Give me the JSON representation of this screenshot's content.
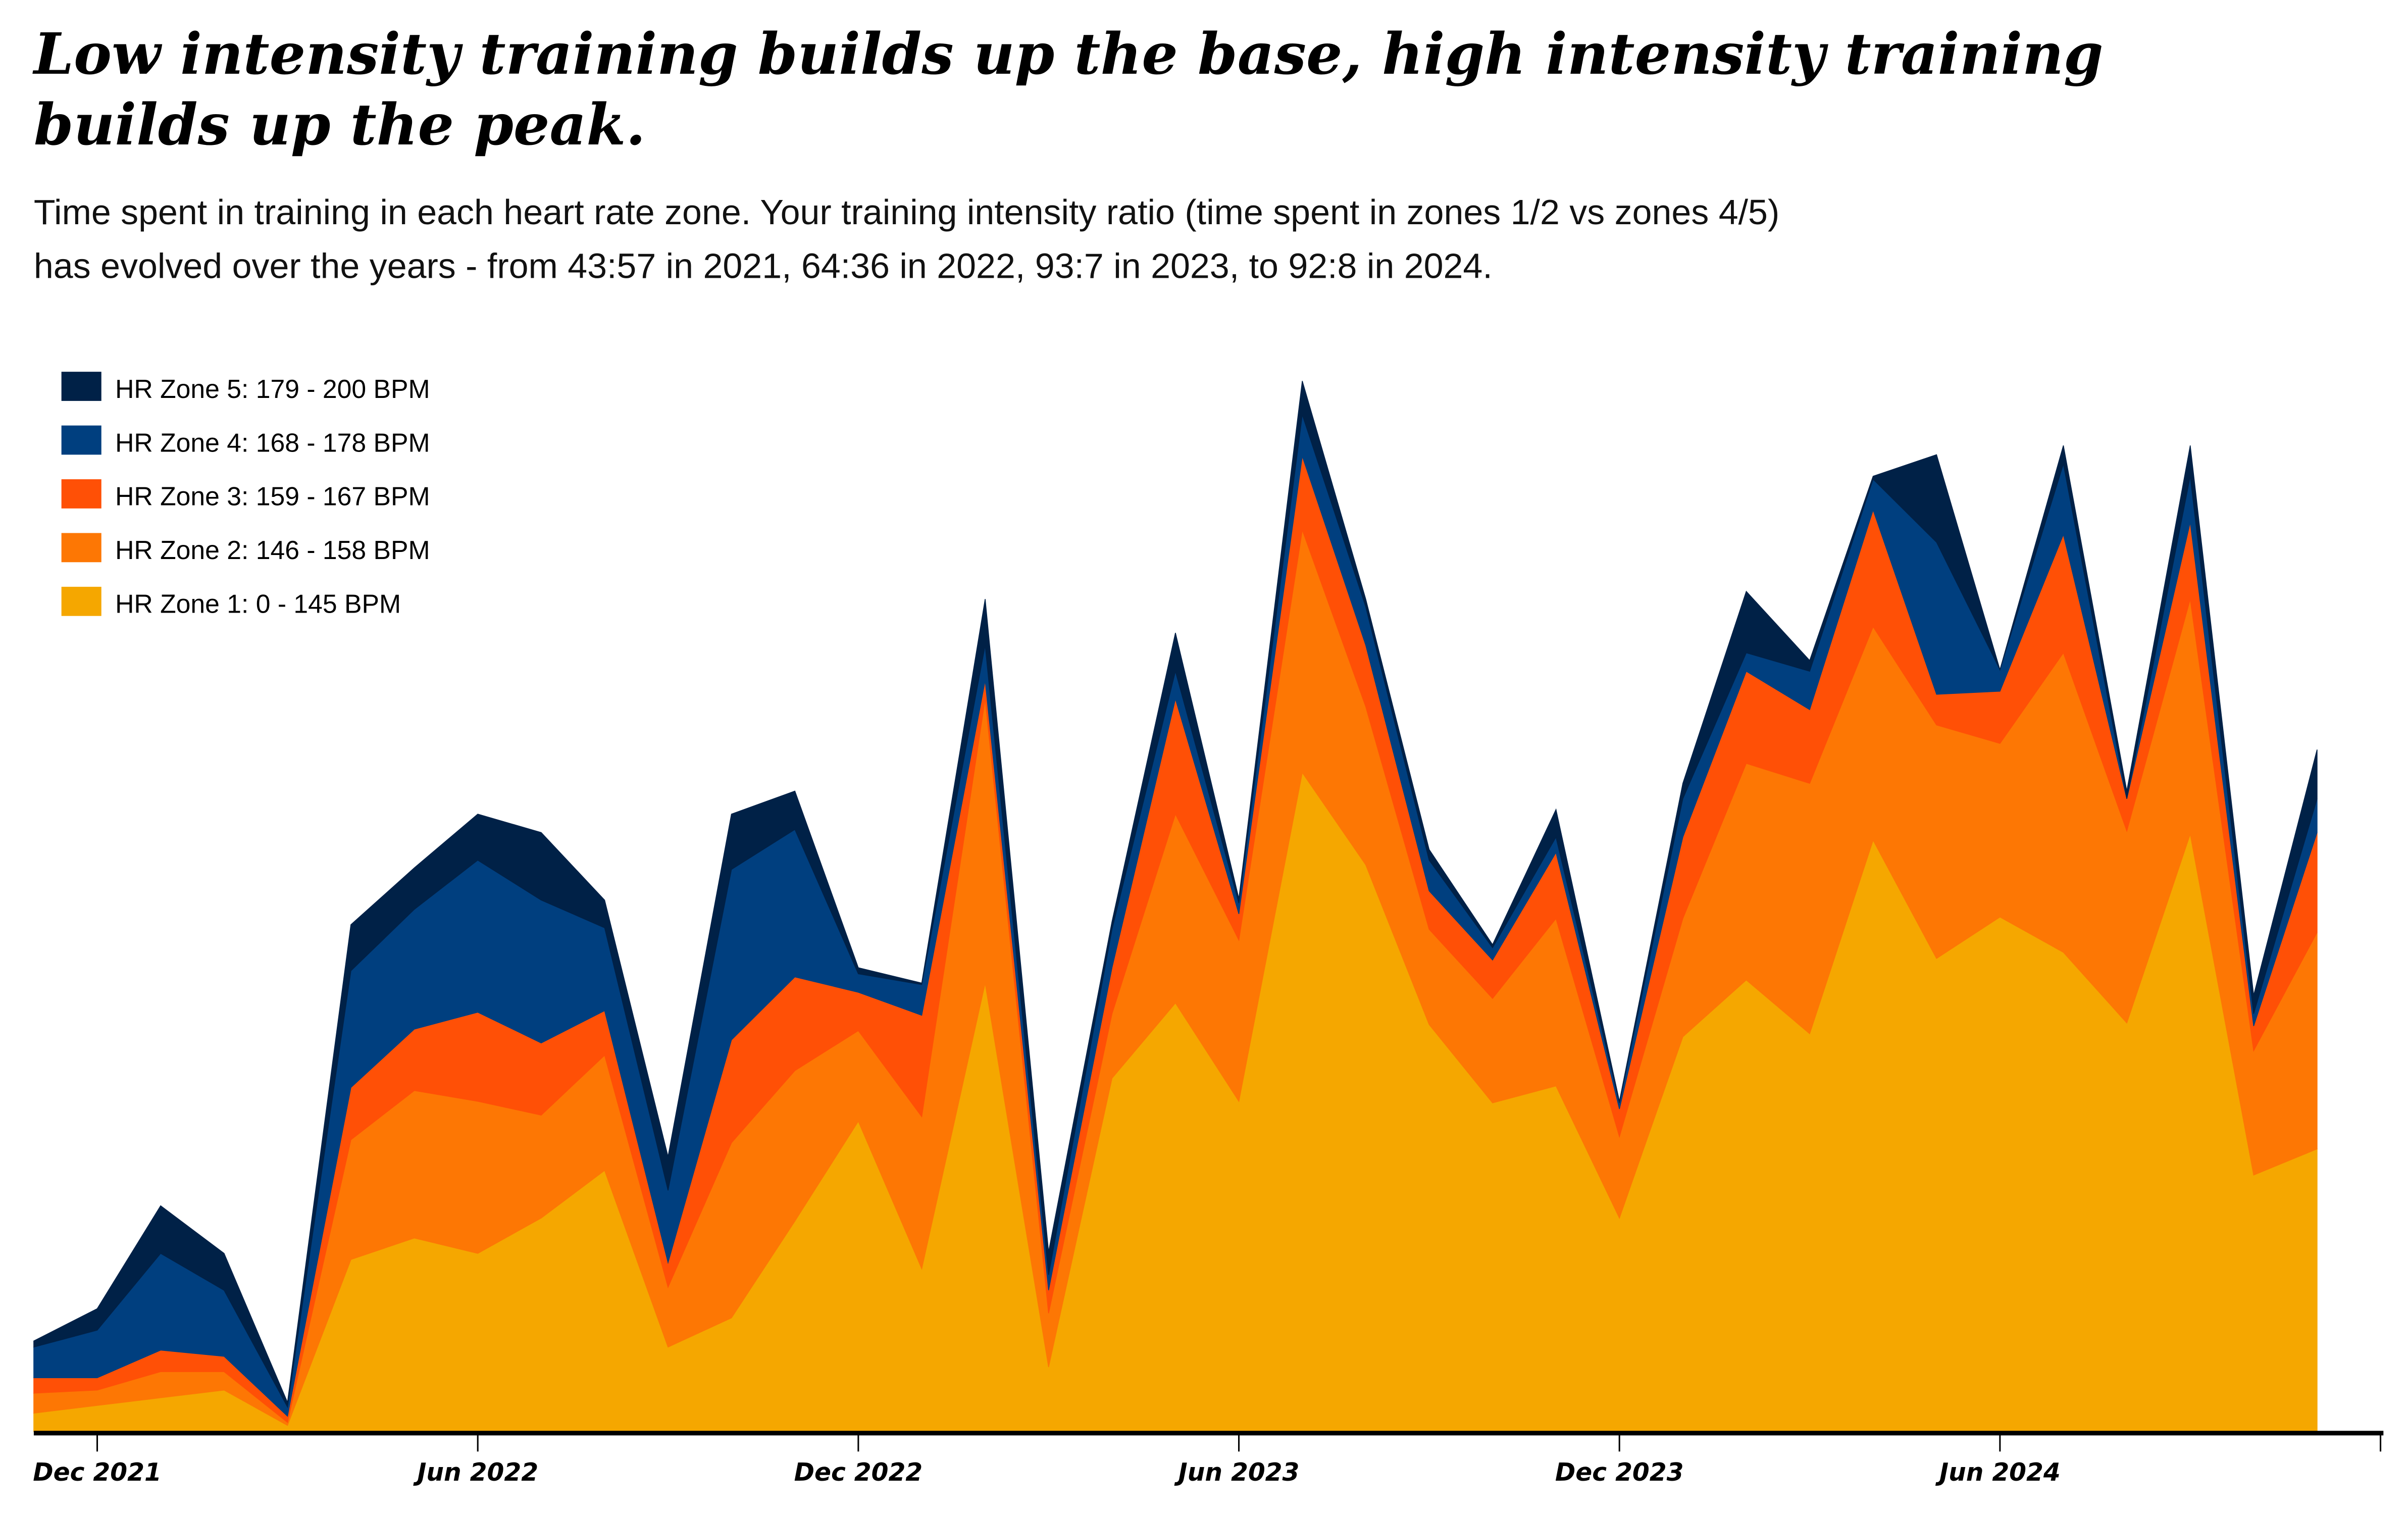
{
  "title_line1": "Low intensity training builds up the base, high intensity training",
  "title_line2": "builds up the peak.",
  "subtitle_line1": "Time spent in training in each heart rate zone. Your training intensity ratio (time spent in zones 1/2 vs zones 4/5)",
  "subtitle_line2": "has evolved over the years - from 43:57 in 2021, 64:36 in 2022, 93:7 in 2023, to 92:8 in 2024.",
  "chart_data": {
    "type": "area",
    "stacked": true,
    "title": "Low intensity training builds up the base, high intensity training builds up the peak.",
    "xlabel": "",
    "ylabel": "",
    "ylim": [
      0,
      700
    ],
    "grid": false,
    "legend_placement": "top-left",
    "x": [
      "Nov 2021",
      "Dec 2021",
      "Jan 2022",
      "Feb 2022",
      "Mar 2022",
      "Apr 2022",
      "May 2022",
      "Jun 2022",
      "Jul 2022",
      "Aug 2022",
      "Sep 2022",
      "Oct 2022",
      "Nov 2022",
      "Dec 2022",
      "Jan 2023",
      "Feb 2023",
      "Mar 2023",
      "Apr 2023",
      "May 2023",
      "Jun 2023",
      "Jul 2023",
      "Aug 2023",
      "Sep 2023",
      "Oct 2023",
      "Nov 2023",
      "Dec 2023",
      "Jan 2024",
      "Feb 2024",
      "Mar 2024",
      "Apr 2024",
      "May 2024",
      "Jun 2024",
      "Jul 2024",
      "Aug 2024",
      "Sep 2024",
      "Oct 2024",
      "Nov 2024"
    ],
    "x_ticks": [
      {
        "index": 1,
        "label": "Dec 2021"
      },
      {
        "index": 7,
        "label": "Jun 2022"
      },
      {
        "index": 13,
        "label": "Dec 2022"
      },
      {
        "index": 19,
        "label": "Jun 2023"
      },
      {
        "index": 25,
        "label": "Dec 2023"
      },
      {
        "index": 31,
        "label": "Jun 2024"
      },
      {
        "index": 37,
        "label": ""
      }
    ],
    "series": [
      {
        "name": "HR Zone 1: 0 - 145 BPM",
        "color": "#F5A700",
        "values": [
          12,
          17,
          22,
          27,
          4,
          112,
          126,
          116,
          139,
          170,
          55,
          74,
          137,
          202,
          106,
          292,
          42,
          230,
          279,
          215,
          429,
          369,
          265,
          214,
          225,
          139,
          257,
          294,
          259,
          385,
          308,
          335,
          312,
          266,
          389,
          167,
          184
        ]
      },
      {
        "name": "HR Zone 2: 146 - 158 BPM",
        "color": "#FD7704",
        "values": [
          13,
          10,
          17,
          12,
          2,
          78,
          96,
          99,
          67,
          75,
          39,
          114,
          98,
          59,
          99,
          185,
          35,
          42,
          123,
          105,
          158,
          103,
          62,
          68,
          109,
          53,
          77,
          141,
          163,
          139,
          152,
          113,
          195,
          125,
          153,
          81,
          141
        ]
      },
      {
        "name": "HR Zone 3: 159 - 167 BPM",
        "color": "#FF5006",
        "values": [
          10,
          8,
          14,
          10,
          4,
          34,
          40,
          58,
          47,
          29,
          16,
          67,
          61,
          25,
          66,
          12,
          15,
          30,
          75,
          17,
          48,
          40,
          25,
          25,
          43,
          18,
          53,
          60,
          48,
          76,
          20,
          34,
          77,
          21,
          50,
          16,
          65
        ]
      },
      {
        "name": "HR Zone 4: 168 - 178 BPM",
        "color": "#003F7F",
        "values": [
          20,
          31,
          63,
          43,
          6,
          76,
          78,
          99,
          93,
          54,
          47,
          111,
          96,
          12,
          20,
          23,
          10,
          25,
          18,
          7,
          27,
          25,
          20,
          8,
          10,
          4,
          25,
          12,
          25,
          20,
          99,
          14,
          46,
          0,
          30,
          8,
          22
        ]
      },
      {
        "name": "HR Zone 5: 179 - 200 BPM",
        "color": "#002147",
        "values": [
          4,
          14,
          31,
          24,
          3,
          30,
          27,
          30,
          44,
          18,
          22,
          36,
          25,
          4,
          1,
          30,
          15,
          5,
          25,
          3,
          22,
          5,
          7,
          2,
          18,
          1,
          10,
          40,
          7,
          2,
          57,
          0,
          12,
          5,
          20,
          12,
          32
        ]
      }
    ]
  }
}
